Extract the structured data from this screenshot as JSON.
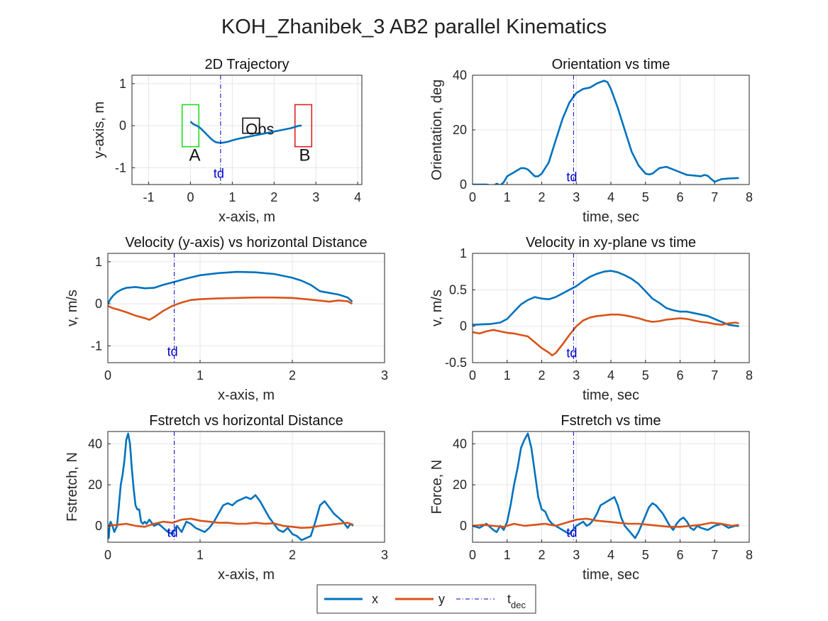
{
  "figure_title": "KOH_Zhanibek_3    AB2    parallel    Kinematics",
  "colors": {
    "x": "#0072BD",
    "y": "#D95319",
    "tdec": "#0000CD",
    "start_box": "#22DD22",
    "end_box": "#DD2222",
    "grid": "#E5E5E5"
  },
  "legend": {
    "x_label": "x",
    "y_label": "y",
    "tdec_main": "t",
    "tdec_sub": "dec"
  },
  "chart_data": [
    {
      "type": "line",
      "title": "2D Trajectory",
      "xlabel": "x-axis, m",
      "ylabel": "y-axis, m",
      "xlim": [
        -1.4,
        4.1
      ],
      "ylim": [
        -1.4,
        1.2
      ],
      "xticks": [
        -1,
        0,
        1,
        2,
        3,
        4
      ],
      "yticks": [
        -1,
        0,
        1
      ],
      "grid": true,
      "td_x": 0.72,
      "td_label": "td",
      "td_label_y": -1.12,
      "start_box": {
        "label": "A",
        "x": [
          -0.2,
          0.2
        ],
        "y": [
          -0.5,
          0.5
        ]
      },
      "end_box": {
        "label": "B",
        "x": [
          2.5,
          2.9
        ],
        "y": [
          -0.5,
          0.5
        ]
      },
      "obstacle": {
        "label": "Obs",
        "x": [
          1.25,
          1.65
        ],
        "y": [
          -0.18,
          0.18
        ]
      },
      "series": [
        {
          "color_key": "x",
          "x": [
            0.0,
            0.05,
            0.1,
            0.15,
            0.2,
            0.25,
            0.3,
            0.35,
            0.4,
            0.45,
            0.5,
            0.55,
            0.6,
            0.65,
            0.72,
            0.8,
            0.9,
            1.0,
            1.2,
            1.4,
            1.6,
            1.8,
            2.0,
            2.2,
            2.4,
            2.5,
            2.6,
            2.66
          ],
          "y": [
            0.1,
            0.05,
            0.02,
            0.0,
            -0.03,
            -0.07,
            -0.12,
            -0.17,
            -0.22,
            -0.27,
            -0.32,
            -0.36,
            -0.39,
            -0.4,
            -0.41,
            -0.4,
            -0.38,
            -0.35,
            -0.3,
            -0.26,
            -0.22,
            -0.18,
            -0.14,
            -0.1,
            -0.06,
            -0.03,
            0.0,
            0.0
          ]
        }
      ]
    },
    {
      "type": "line",
      "title": "Orientation vs time",
      "xlabel": "time, sec",
      "ylabel": "Orientation, deg",
      "xlim": [
        0,
        8
      ],
      "ylim": [
        0,
        40
      ],
      "xticks": [
        0,
        1,
        2,
        3,
        4,
        5,
        6,
        7,
        8
      ],
      "yticks": [
        0,
        20,
        40
      ],
      "grid": true,
      "td_x": 2.92,
      "td_label": "td",
      "td_label_y": 3,
      "series": [
        {
          "color_key": "x",
          "x": [
            0,
            0.2,
            0.4,
            0.6,
            0.7,
            0.8,
            0.9,
            1.0,
            1.2,
            1.4,
            1.5,
            1.6,
            1.8,
            1.9,
            2.0,
            2.2,
            2.4,
            2.6,
            2.8,
            3.0,
            3.2,
            3.4,
            3.6,
            3.8,
            3.9,
            4.0,
            4.2,
            4.4,
            4.6,
            4.8,
            5.0,
            5.1,
            5.2,
            5.4,
            5.6,
            5.8,
            6.0,
            6.2,
            6.4,
            6.6,
            6.7,
            6.8,
            6.9,
            7.0,
            7.2,
            7.4,
            7.6,
            7.7
          ],
          "y": [
            0,
            0,
            0,
            -0.5,
            0.3,
            -0.3,
            0.8,
            3,
            4.5,
            6,
            6,
            5.5,
            3,
            3,
            4,
            8,
            16,
            24,
            30,
            33.5,
            35,
            35.5,
            37,
            38,
            37.5,
            35,
            28,
            20,
            12,
            7,
            4,
            3.7,
            4,
            6,
            6.5,
            5.5,
            4.5,
            3.5,
            3.3,
            3,
            3.5,
            3.2,
            2,
            1,
            2,
            2.2,
            2.3,
            2.4
          ]
        }
      ]
    },
    {
      "type": "line",
      "title": "Velocity (y-axis) vs horizontal Distance",
      "xlabel": "x-axis, m",
      "ylabel": "v, m/s",
      "xlim": [
        0,
        3
      ],
      "ylim": [
        -1.4,
        1.2
      ],
      "xticks": [
        0,
        1,
        2,
        3
      ],
      "yticks": [
        -1,
        0,
        1
      ],
      "grid": true,
      "td_x": 0.72,
      "td_label": "td",
      "td_label_y": -1.12,
      "series": [
        {
          "name": "x",
          "color_key": "x",
          "x": [
            0,
            0.03,
            0.06,
            0.1,
            0.15,
            0.2,
            0.3,
            0.4,
            0.5,
            0.6,
            0.72,
            0.85,
            1.0,
            1.2,
            1.4,
            1.6,
            1.8,
            2.0,
            2.1,
            2.2,
            2.3,
            2.4,
            2.5,
            2.6,
            2.65
          ],
          "y": [
            0,
            0.12,
            0.2,
            0.28,
            0.34,
            0.38,
            0.4,
            0.37,
            0.38,
            0.45,
            0.52,
            0.6,
            0.68,
            0.73,
            0.76,
            0.75,
            0.71,
            0.62,
            0.55,
            0.45,
            0.3,
            0.26,
            0.22,
            0.15,
            0.05
          ]
        },
        {
          "name": "y",
          "color_key": "y",
          "x": [
            0,
            0.05,
            0.1,
            0.2,
            0.3,
            0.4,
            0.45,
            0.5,
            0.6,
            0.7,
            0.8,
            0.9,
            1.0,
            1.2,
            1.4,
            1.6,
            1.8,
            2.0,
            2.2,
            2.4,
            2.5,
            2.6,
            2.65
          ],
          "y": [
            -0.05,
            -0.1,
            -0.13,
            -0.2,
            -0.28,
            -0.34,
            -0.38,
            -0.32,
            -0.17,
            -0.05,
            0.03,
            0.09,
            0.11,
            0.13,
            0.14,
            0.15,
            0.15,
            0.14,
            0.1,
            0.05,
            0.08,
            0.06,
            0.0
          ]
        }
      ]
    },
    {
      "type": "line",
      "title": "Velocity in xy-plane vs time",
      "xlabel": "time, sec",
      "ylabel": "v, m/s",
      "xlim": [
        0,
        8
      ],
      "ylim": [
        -0.5,
        1
      ],
      "xticks": [
        0,
        1,
        2,
        3,
        4,
        5,
        6,
        7,
        8
      ],
      "yticks": [
        -0.5,
        0,
        0.5,
        1
      ],
      "grid": true,
      "td_x": 2.92,
      "td_label": "td",
      "td_label_y": -0.36,
      "series": [
        {
          "name": "x",
          "color_key": "x",
          "x": [
            0,
            0.5,
            0.8,
            1.0,
            1.2,
            1.4,
            1.6,
            1.8,
            2.0,
            2.2,
            2.4,
            2.6,
            2.8,
            3.0,
            3.2,
            3.4,
            3.6,
            3.8,
            4.0,
            4.2,
            4.4,
            4.6,
            4.8,
            5.0,
            5.2,
            5.4,
            5.6,
            5.8,
            6.0,
            6.2,
            6.4,
            6.6,
            6.8,
            7.0,
            7.2,
            7.4,
            7.7
          ],
          "y": [
            0.02,
            0.03,
            0.05,
            0.1,
            0.2,
            0.3,
            0.36,
            0.4,
            0.38,
            0.37,
            0.4,
            0.45,
            0.5,
            0.55,
            0.62,
            0.68,
            0.72,
            0.75,
            0.76,
            0.74,
            0.7,
            0.65,
            0.58,
            0.48,
            0.38,
            0.32,
            0.25,
            0.22,
            0.2,
            0.2,
            0.18,
            0.16,
            0.14,
            0.1,
            0.06,
            0.02,
            0.0
          ]
        },
        {
          "name": "y",
          "color_key": "y",
          "x": [
            0,
            0.2,
            0.4,
            0.6,
            0.8,
            1.0,
            1.2,
            1.4,
            1.6,
            1.8,
            2.0,
            2.2,
            2.3,
            2.4,
            2.6,
            2.8,
            3.0,
            3.2,
            3.4,
            3.6,
            3.8,
            4.0,
            4.2,
            4.4,
            4.6,
            4.8,
            5.0,
            5.2,
            5.4,
            5.6,
            5.8,
            6.0,
            6.2,
            6.4,
            6.6,
            6.8,
            7.0,
            7.2,
            7.4,
            7.6,
            7.7
          ],
          "y": [
            -0.08,
            -0.1,
            -0.07,
            -0.05,
            -0.07,
            -0.09,
            -0.1,
            -0.12,
            -0.14,
            -0.22,
            -0.3,
            -0.36,
            -0.4,
            -0.37,
            -0.25,
            -0.12,
            0.0,
            0.08,
            0.12,
            0.14,
            0.15,
            0.16,
            0.16,
            0.15,
            0.13,
            0.11,
            0.08,
            0.06,
            0.07,
            0.09,
            0.1,
            0.11,
            0.1,
            0.08,
            0.06,
            0.05,
            0.03,
            0.02,
            0.04,
            0.05,
            0.04
          ]
        }
      ]
    },
    {
      "type": "line",
      "title": "Fstretch vs horizontal Distance",
      "xlabel": "x-axis, m",
      "ylabel": "Fstretch, N",
      "xlim": [
        0,
        3
      ],
      "ylim": [
        -8,
        46
      ],
      "xticks": [
        0,
        1,
        2,
        3
      ],
      "yticks": [
        0,
        20,
        40
      ],
      "grid": true,
      "td_x": 0.72,
      "td_label": "td",
      "td_label_y": -3,
      "series": [
        {
          "name": "x",
          "color_key": "x",
          "x": [
            0,
            0.01,
            0.02,
            0.03,
            0.05,
            0.07,
            0.1,
            0.12,
            0.14,
            0.16,
            0.18,
            0.2,
            0.22,
            0.24,
            0.26,
            0.28,
            0.3,
            0.32,
            0.34,
            0.36,
            0.38,
            0.4,
            0.42,
            0.45,
            0.5,
            0.55,
            0.6,
            0.65,
            0.7,
            0.72,
            0.75,
            0.8,
            0.85,
            0.9,
            0.95,
            1.0,
            1.05,
            1.1,
            1.15,
            1.2,
            1.25,
            1.3,
            1.35,
            1.4,
            1.45,
            1.5,
            1.55,
            1.6,
            1.65,
            1.7,
            1.75,
            1.8,
            1.85,
            1.9,
            1.95,
            2.0,
            2.05,
            2.1,
            2.15,
            2.2,
            2.25,
            2.3,
            2.35,
            2.4,
            2.45,
            2.5,
            2.55,
            2.6,
            2.63,
            2.66
          ],
          "y": [
            -1,
            -6,
            1,
            2,
            0,
            -3,
            0,
            10,
            20,
            25,
            32,
            42,
            45,
            40,
            28,
            18,
            10,
            8,
            8,
            2,
            1,
            2,
            1,
            3,
            0,
            1,
            -1,
            -3,
            -4,
            -2,
            0,
            -3,
            2,
            1,
            -1,
            -2,
            -3,
            -1,
            2,
            6,
            10,
            11,
            10,
            12,
            13,
            14,
            13,
            15,
            12,
            8,
            4,
            1,
            -2,
            -3,
            -1,
            -4,
            -5,
            -7,
            -6,
            -5,
            2,
            10,
            12,
            9,
            6,
            4,
            2,
            -1,
            1,
            0
          ]
        },
        {
          "name": "y",
          "color_key": "y",
          "x": [
            0,
            0.1,
            0.2,
            0.3,
            0.4,
            0.5,
            0.6,
            0.7,
            0.8,
            0.9,
            1.0,
            1.1,
            1.2,
            1.3,
            1.4,
            1.5,
            1.6,
            1.7,
            1.8,
            1.9,
            2.0,
            2.1,
            2.2,
            2.3,
            2.4,
            2.5,
            2.6,
            2.66
          ],
          "y": [
            0,
            0.5,
            1,
            0,
            -0.5,
            1,
            2,
            1.5,
            3,
            3.5,
            2.5,
            2,
            1.5,
            1.5,
            1,
            1,
            1.5,
            1,
            1.2,
            0,
            -0.5,
            -1,
            -0.8,
            0,
            0.5,
            1,
            1.5,
            0.5
          ]
        }
      ]
    },
    {
      "type": "line",
      "title": "Fstretch vs time",
      "xlabel": "time, sec",
      "ylabel": "Force, N",
      "xlim": [
        0,
        8
      ],
      "ylim": [
        -8,
        46
      ],
      "xticks": [
        0,
        1,
        2,
        3,
        4,
        5,
        6,
        7,
        8
      ],
      "yticks": [
        0,
        20,
        40
      ],
      "grid": true,
      "td_x": 2.92,
      "td_label": "td",
      "td_label_y": -3,
      "series": [
        {
          "name": "x",
          "color_key": "x",
          "x": [
            0,
            0.2,
            0.4,
            0.6,
            0.7,
            0.8,
            0.9,
            1.0,
            1.1,
            1.2,
            1.3,
            1.4,
            1.5,
            1.6,
            1.7,
            1.8,
            1.9,
            2.0,
            2.1,
            2.2,
            2.3,
            2.4,
            2.5,
            2.6,
            2.7,
            2.8,
            2.9,
            3.0,
            3.1,
            3.2,
            3.3,
            3.4,
            3.5,
            3.6,
            3.7,
            3.8,
            3.9,
            4.0,
            4.1,
            4.2,
            4.3,
            4.4,
            4.5,
            4.6,
            4.7,
            4.8,
            4.9,
            5.0,
            5.1,
            5.2,
            5.3,
            5.4,
            5.5,
            5.6,
            5.7,
            5.8,
            5.9,
            6.0,
            6.1,
            6.2,
            6.3,
            6.4,
            6.5,
            6.6,
            6.8,
            7.0,
            7.2,
            7.4,
            7.6,
            7.7
          ],
          "y": [
            0,
            -1,
            1,
            -2,
            -3,
            0,
            -2,
            2,
            10,
            20,
            28,
            38,
            42,
            45,
            38,
            26,
            14,
            8,
            7,
            3,
            1,
            0,
            -1,
            -2,
            -3,
            -4,
            -2,
            0,
            1,
            2,
            0,
            1,
            3,
            6,
            10,
            11,
            12,
            13,
            14,
            10,
            4,
            0,
            -2,
            -4,
            -6,
            -3,
            1,
            5,
            9,
            11,
            10,
            8,
            6,
            3,
            0,
            -2,
            1,
            3,
            4,
            2,
            -1,
            -2,
            0,
            -1,
            -2,
            0,
            1,
            -1,
            0,
            0
          ]
        },
        {
          "name": "y",
          "color_key": "y",
          "x": [
            0,
            0.3,
            0.6,
            0.9,
            1.2,
            1.5,
            1.8,
            2.1,
            2.4,
            2.7,
            3.0,
            3.3,
            3.6,
            3.9,
            4.2,
            4.5,
            4.8,
            5.1,
            5.4,
            5.7,
            6.0,
            6.3,
            6.6,
            6.9,
            7.2,
            7.5,
            7.7
          ],
          "y": [
            0,
            0.5,
            0,
            -0.5,
            1,
            0,
            0.5,
            1,
            0,
            1.5,
            3,
            3.5,
            2.5,
            2,
            1.5,
            1,
            1,
            0.5,
            0,
            -0.5,
            -0.5,
            0,
            0.5,
            1.5,
            1,
            0,
            0.5
          ]
        }
      ]
    }
  ]
}
